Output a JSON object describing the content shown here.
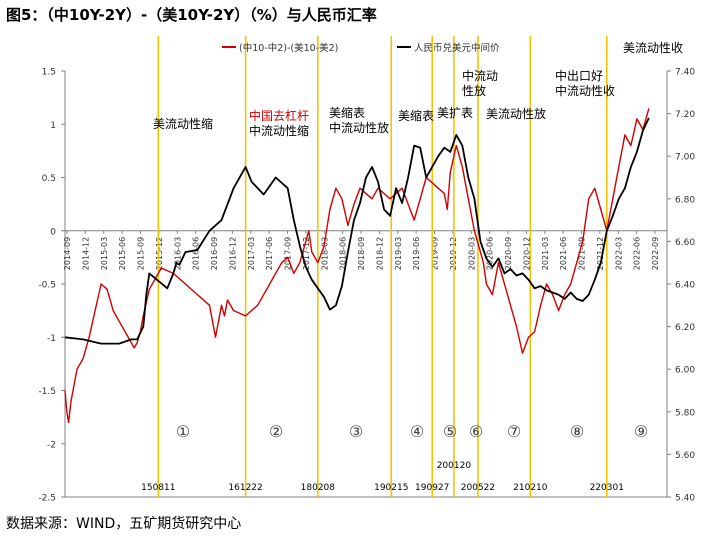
{
  "figure": {
    "title": "图5：（中10Y-2Y）-（美10Y-2Y）（%）与人民币汇率",
    "source": "数据来源：WIND，五矿期货研究中心"
  },
  "colors": {
    "spread": "#d00000",
    "fx": "#000000",
    "vline": "#f2c400",
    "axis": "#808080"
  },
  "chart_data": {
    "type": "line",
    "title": "（中10Y-2Y）-（美10Y-2Y）（%）与人民币汇率",
    "left_axis": {
      "ylim": [
        -2.5,
        1.5
      ],
      "ticks": [
        "1.5",
        "1",
        "0.5",
        "0",
        "-0.5",
        "-1",
        "-1.5",
        "-2",
        "-2.5"
      ]
    },
    "right_axis": {
      "ylim": [
        5.4,
        7.4
      ],
      "ticks": [
        "7.40",
        "7.20",
        "7.00",
        "6.80",
        "6.60",
        "6.40",
        "6.20",
        "6.00",
        "5.80",
        "5.60",
        "5.40"
      ]
    },
    "x_ticks": [
      "2014-09",
      "2014-12",
      "2015-03",
      "2015-06",
      "2015-09",
      "2015-12",
      "2016-03",
      "2016-06",
      "2016-09",
      "2016-12",
      "2017-03",
      "2017-06",
      "2017-09",
      "2017-12",
      "2018-03",
      "2018-06",
      "2018-09",
      "2018-12",
      "2019-03",
      "2019-06",
      "2019-09",
      "2019-12",
      "2020-03",
      "2020-06",
      "2020-09",
      "2020-12",
      "2021-03",
      "2021-06",
      "2021-09",
      "2021-12",
      "2022-03",
      "2022-06",
      "2022-09"
    ],
    "legend": [
      "(中10-中2)-(美10-美2)",
      "人民币兑美元中间价"
    ],
    "series": [
      {
        "name": "(中10-中2)-(美10-美2)",
        "axis": "left",
        "color": "#d00000",
        "x": [
          0,
          0.3,
          0.6,
          1,
          1.5,
          2,
          3,
          4,
          5,
          6,
          7,
          8,
          9,
          10,
          11,
          11.5,
          12,
          12.5,
          13,
          14,
          16,
          18,
          20,
          22,
          24,
          25,
          26,
          26.5,
          27,
          28,
          30,
          32,
          34,
          36,
          37,
          38,
          39,
          40,
          40.5,
          41,
          42,
          43,
          44,
          45,
          46,
          47,
          48,
          49,
          50,
          51,
          52,
          53,
          54,
          55,
          56,
          57,
          58,
          59,
          60,
          61,
          62,
          63,
          63.5,
          64,
          65,
          66,
          67,
          68,
          69,
          69.5,
          70,
          71,
          72,
          73,
          74,
          75,
          76,
          77,
          78,
          79,
          80,
          81,
          82,
          83,
          84,
          85,
          86,
          87,
          88,
          89,
          90,
          91,
          92,
          93,
          94,
          95,
          96,
          97
        ],
        "values": [
          -1.5,
          -1.7,
          -1.8,
          -1.6,
          -1.45,
          -1.3,
          -1.2,
          -1.0,
          -0.75,
          -0.5,
          -0.55,
          -0.75,
          -0.85,
          -0.95,
          -1.05,
          -1.1,
          -1.05,
          -0.95,
          -0.8,
          -0.55,
          -0.35,
          -0.4,
          -0.5,
          -0.6,
          -0.7,
          -1.0,
          -0.7,
          -0.8,
          -0.65,
          -0.75,
          -0.8,
          -0.7,
          -0.5,
          -0.3,
          -0.25,
          -0.4,
          -0.3,
          -0.1,
          0.0,
          -0.2,
          -0.3,
          -0.15,
          0.2,
          0.4,
          0.3,
          0.05,
          0.25,
          0.4,
          0.35,
          0.3,
          0.4,
          0.35,
          0.3,
          0.35,
          0.4,
          0.25,
          0.1,
          0.3,
          0.5,
          0.45,
          0.4,
          0.35,
          0.2,
          0.55,
          0.8,
          0.6,
          0.3,
          0.0,
          -0.2,
          -0.3,
          -0.5,
          -0.6,
          -0.3,
          -0.5,
          -0.7,
          -0.9,
          -1.15,
          -1.0,
          -0.95,
          -0.7,
          -0.5,
          -0.6,
          -0.75,
          -0.6,
          -0.5,
          -0.3,
          -0.1,
          0.3,
          0.4,
          0.2,
          0.0,
          0.3,
          0.6,
          0.9,
          0.8,
          1.05,
          0.95,
          1.15
        ]
      },
      {
        "name": "人民币兑美元中间价",
        "axis": "right",
        "color": "#000000",
        "x": [
          0,
          3,
          6,
          9,
          11,
          12,
          13,
          13.5,
          14,
          17,
          18,
          18.5,
          19,
          20,
          22,
          24,
          26,
          28,
          30,
          31,
          33,
          35,
          37,
          38,
          39,
          40,
          41,
          42,
          43,
          44,
          45,
          46,
          47,
          48,
          49,
          50,
          51,
          52,
          53,
          54,
          55,
          56,
          57,
          58,
          59,
          60,
          61,
          62,
          63,
          64,
          65,
          66,
          67,
          68,
          69,
          70,
          71,
          72,
          73,
          74,
          75,
          76,
          77,
          78,
          79,
          80,
          81,
          82,
          83,
          84,
          85,
          86,
          87,
          88,
          89,
          90,
          91,
          92,
          93,
          94,
          95,
          96,
          97
        ],
        "values": [
          6.15,
          6.14,
          6.12,
          6.12,
          6.14,
          6.14,
          6.2,
          6.35,
          6.45,
          6.38,
          6.45,
          6.5,
          6.49,
          6.55,
          6.56,
          6.65,
          6.7,
          6.85,
          6.95,
          6.88,
          6.82,
          6.9,
          6.85,
          6.7,
          6.58,
          6.48,
          6.42,
          6.38,
          6.34,
          6.28,
          6.3,
          6.39,
          6.55,
          6.7,
          6.78,
          6.9,
          6.95,
          6.88,
          6.75,
          6.72,
          6.85,
          6.78,
          6.9,
          7.05,
          7.04,
          6.9,
          6.95,
          7.0,
          7.04,
          7.02,
          7.1,
          7.05,
          6.9,
          6.8,
          6.6,
          6.52,
          6.48,
          6.52,
          6.45,
          6.47,
          6.44,
          6.45,
          6.42,
          6.38,
          6.39,
          6.37,
          6.36,
          6.35,
          6.33,
          6.36,
          6.33,
          6.32,
          6.35,
          6.42,
          6.5,
          6.65,
          6.72,
          6.8,
          6.85,
          6.95,
          7.02,
          7.12,
          7.18
        ]
      }
    ],
    "events": [
      {
        "date": "150811",
        "period": "①",
        "x": 15.5
      },
      {
        "date": "161222",
        "period": "②",
        "x": 30.0
      },
      {
        "date": "180208",
        "period": "③",
        "x": 42.0
      },
      {
        "date": "190215",
        "period": "④",
        "x": 54.2
      },
      {
        "date": "190927",
        "period": "⑤",
        "x": 61.0
      },
      {
        "date": "200120",
        "period": "⑥",
        "x": 64.6
      },
      {
        "date": "200522",
        "period": "⑦",
        "x": 68.6
      },
      {
        "date": "210210",
        "period": "⑧",
        "x": 77.3
      },
      {
        "date": "220301",
        "period": "⑨",
        "x": 90.0
      }
    ],
    "annotations": [
      {
        "text": "美流动性缩",
        "color": "#000000"
      },
      {
        "text": "中国去杠杆",
        "color": "#d00000"
      },
      {
        "text": "中流动性缩",
        "color": "#000000"
      },
      {
        "text": "美缩表",
        "color": "#000000"
      },
      {
        "text": "中流动性放",
        "color": "#000000"
      },
      {
        "text": "美缩表",
        "color": "#000000"
      },
      {
        "text": "美扩表",
        "color": "#000000"
      },
      {
        "text": "中流动",
        "color": "#000000"
      },
      {
        "text": "性放",
        "color": "#000000"
      },
      {
        "text": "美流动性放",
        "color": "#000000"
      },
      {
        "text": "中出口好",
        "color": "#000000"
      },
      {
        "text": "中流动性收",
        "color": "#000000"
      },
      {
        "text": "美流动性收",
        "color": "#000000"
      }
    ]
  }
}
